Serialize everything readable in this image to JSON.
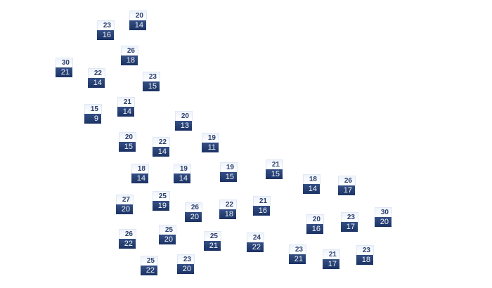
{
  "stations": [
    {
      "high": "23",
      "low": "16"
    },
    {
      "high": "20",
      "low": "14"
    },
    {
      "high": "26",
      "low": "18"
    },
    {
      "high": "30",
      "low": "21"
    },
    {
      "high": "22",
      "low": "14"
    },
    {
      "high": "23",
      "low": "15"
    },
    {
      "high": "15",
      "low": "9"
    },
    {
      "high": "21",
      "low": "14"
    },
    {
      "high": "20",
      "low": "13"
    },
    {
      "high": "20",
      "low": "15"
    },
    {
      "high": "22",
      "low": "14"
    },
    {
      "high": "19",
      "low": "11"
    },
    {
      "high": "18",
      "low": "14"
    },
    {
      "high": "19",
      "low": "14"
    },
    {
      "high": "19",
      "low": "15"
    },
    {
      "high": "21",
      "low": "15"
    },
    {
      "high": "18",
      "low": "14"
    },
    {
      "high": "26",
      "low": "17"
    },
    {
      "high": "27",
      "low": "20"
    },
    {
      "high": "25",
      "low": "19"
    },
    {
      "high": "26",
      "low": "20"
    },
    {
      "high": "22",
      "low": "18"
    },
    {
      "high": "21",
      "low": "16"
    },
    {
      "high": "20",
      "low": "16"
    },
    {
      "high": "23",
      "low": "17"
    },
    {
      "high": "30",
      "low": "20"
    },
    {
      "high": "26",
      "low": "22"
    },
    {
      "high": "25",
      "low": "20"
    },
    {
      "high": "25",
      "low": "21"
    },
    {
      "high": "24",
      "low": "22"
    },
    {
      "high": "23",
      "low": "21"
    },
    {
      "high": "21",
      "low": "17"
    },
    {
      "high": "23",
      "low": "18"
    },
    {
      "high": "25",
      "low": "22"
    },
    {
      "high": "23",
      "low": "20"
    }
  ],
  "colors": {
    "high_text": "#2b3f6b",
    "low_bg": "#1b3263",
    "low_text": "#f2f5fa"
  }
}
